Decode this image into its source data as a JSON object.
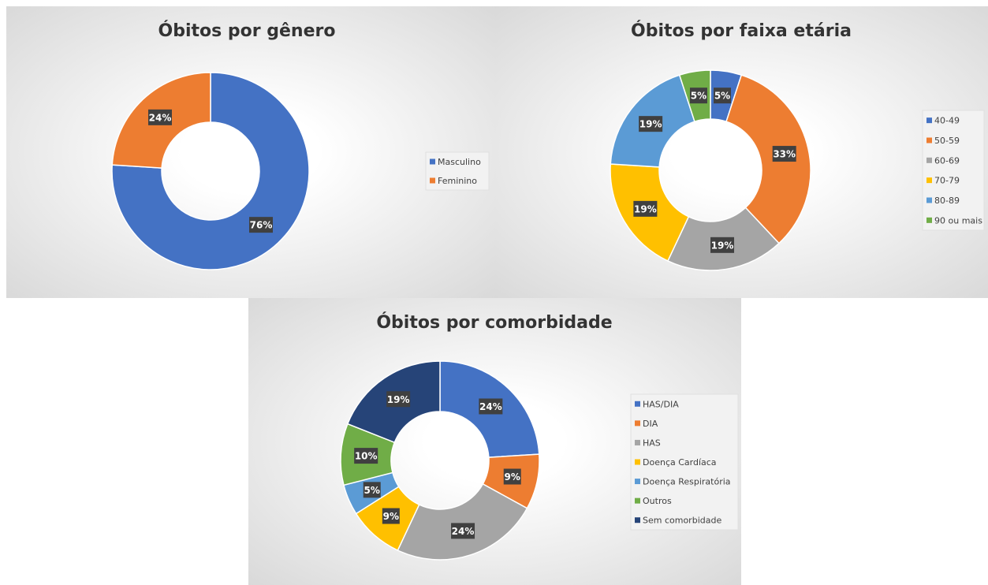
{
  "chart_data": [
    {
      "type": "pie",
      "title": "Óbitos por gênero",
      "categories": [
        "Masculino",
        "Feminino"
      ],
      "values": [
        76,
        24
      ],
      "value_labels": [
        "76%",
        "24%"
      ],
      "colors": [
        "#4472c4",
        "#ed7d31"
      ]
    },
    {
      "type": "pie",
      "title": "Óbitos por faixa etária",
      "categories": [
        "40-49",
        "50-59",
        "60-69",
        "70-79",
        "80-89",
        "90 ou mais"
      ],
      "values": [
        5,
        33,
        19,
        19,
        19,
        5
      ],
      "value_labels": [
        "5%",
        "33%",
        "19%",
        "19%",
        "19%",
        "5%"
      ],
      "colors": [
        "#4472c4",
        "#ed7d31",
        "#a5a5a5",
        "#ffc000",
        "#5b9bd5",
        "#70ad47"
      ]
    },
    {
      "type": "pie",
      "title": "Óbitos por comorbidade",
      "categories": [
        "HAS/DIA",
        "DIA",
        "HAS",
        "Doença Cardíaca",
        "Doença Respiratória",
        "Outros",
        "Sem comorbidade"
      ],
      "values": [
        24,
        9,
        24,
        9,
        5,
        10,
        19
      ],
      "value_labels": [
        "24%",
        "9%",
        "24%",
        "9%",
        "5%",
        "10%",
        "19%"
      ],
      "colors": [
        "#4472c4",
        "#ed7d31",
        "#a5a5a5",
        "#ffc000",
        "#5b9bd5",
        "#70ad47",
        "#264478"
      ]
    }
  ]
}
